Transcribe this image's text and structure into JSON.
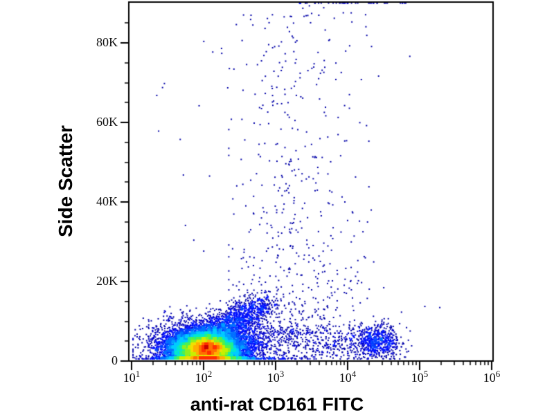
{
  "figure": {
    "background_color": "#ffffff",
    "axis_color": "#000000",
    "dot_color_sparse": "#00008b"
  },
  "chart_data": {
    "type": "scatter",
    "subtype": "flow-cytometry-pseudocolor-density-plot",
    "title": "",
    "xlabel": "anti-rat CD161 FITC",
    "ylabel": "Side Scatter",
    "x_scale": "log10",
    "x_range": [
      10,
      1000000
    ],
    "x_ticks": [
      {
        "base": "10",
        "exp": "1"
      },
      {
        "base": "10",
        "exp": "2"
      },
      {
        "base": "10",
        "exp": "3"
      },
      {
        "base": "10",
        "exp": "4"
      },
      {
        "base": "10",
        "exp": "5"
      },
      {
        "base": "10",
        "exp": "6"
      }
    ],
    "x_tick_log_values": [
      1,
      2,
      3,
      4,
      5,
      6
    ],
    "y_scale": "linear",
    "y_range": [
      0,
      90000
    ],
    "y_major_ticks": [
      {
        "value": 0,
        "label": "0"
      },
      {
        "value": 20000,
        "label": "20K"
      },
      {
        "value": 40000,
        "label": "40K"
      },
      {
        "value": 60000,
        "label": "60K"
      },
      {
        "value": 80000,
        "label": "80K"
      }
    ],
    "y_minor_tick_step": 5000,
    "grid": "off",
    "legend": "none",
    "density_colormap": [
      "#00008b",
      "#0000a8",
      "#0000cd",
      "#0010ff",
      "#0040ff",
      "#0070ff",
      "#00a0ff",
      "#00ccff",
      "#00e8d0",
      "#20f090",
      "#50f050",
      "#90f020",
      "#c8f000",
      "#f0e000",
      "#ffb000",
      "#ff7000",
      "#ff3000",
      "#c80000"
    ],
    "dot_size_px": 2,
    "random_seed": 7,
    "populations": [
      {
        "name": "main-ssc-low-core",
        "kind": "gauss",
        "n": 9000,
        "logx_mean": 2.07,
        "logx_sd": 0.2,
        "y_mean": 3000,
        "y_sd": 1700,
        "y_min": 250
      },
      {
        "name": "main-halo",
        "kind": "gauss",
        "n": 5200,
        "logx_mean": 2.02,
        "logx_sd": 0.34,
        "y_mean": 3800,
        "y_sd": 3000,
        "y_min": 250
      },
      {
        "name": "main-diagonal-arm",
        "kind": "arm",
        "n": 2600,
        "logx0": 1.65,
        "logx1": 2.85,
        "logx_jitter": 0.13,
        "y0": 1500,
        "y1": 14500,
        "y_jitter": 1900,
        "pow": 1.6,
        "y_min": 250
      },
      {
        "name": "bottom-edge-strip",
        "kind": "strip",
        "n": 450,
        "logx_mean": 2.15,
        "logx_sd": 0.38,
        "y_uniform": [
          120,
          900
        ]
      },
      {
        "name": "vertical-debris-trail",
        "kind": "trail",
        "n": 520,
        "logx_mean": 3.35,
        "logx_sd": 0.5,
        "logx_clip": [
          2.35,
          4.9
        ],
        "y_base": 7000,
        "y_span": 84000,
        "pow": 2.3
      },
      {
        "name": "right-low-ssc-band",
        "kind": "band",
        "n": 680,
        "logx_uniform": [
          2.55,
          4.7
        ],
        "x_pow": 1.25,
        "y_mean": 4300,
        "y_sd": 2200,
        "y_min": 250
      },
      {
        "name": "cd161-positive-cluster",
        "kind": "gauss",
        "n": 520,
        "logx_mean": 4.42,
        "logx_sd": 0.15,
        "y_mean": 4800,
        "y_sd": 2100,
        "y_min": 400
      },
      {
        "name": "sparse-background",
        "kind": "bg",
        "n": 240,
        "logx_mean": 3.05,
        "logx_sd": 0.75,
        "logx_clip": [
          1.35,
          5.3
        ],
        "y_span": 88000,
        "pow": 2.6
      },
      {
        "name": "top-edge-clipped-events",
        "kind": "toprow",
        "n": 40,
        "logx_uniform": [
          3.25,
          4.9
        ],
        "y_value": 90000
      }
    ]
  }
}
